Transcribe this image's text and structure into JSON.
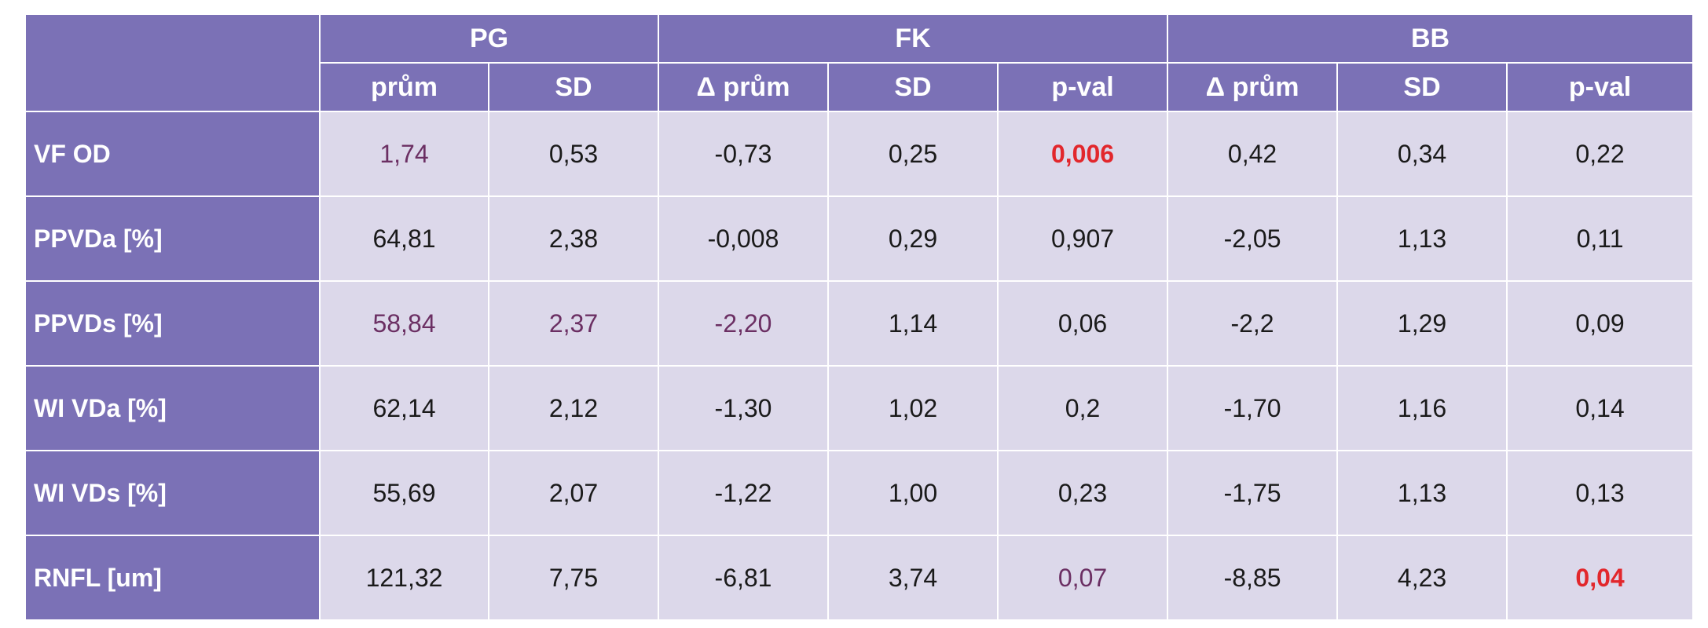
{
  "table": {
    "groups": [
      {
        "label": "PG"
      },
      {
        "label": "FK"
      },
      {
        "label": "BB"
      }
    ],
    "columns": [
      "prům",
      "SD",
      "Δ prům",
      "SD",
      "p-val",
      "Δ prům",
      "SD",
      "p-val"
    ],
    "rows": [
      {
        "label": "VF OD",
        "cells": [
          "1,74",
          "0,53",
          "-0,73",
          "0,25",
          "0,006",
          "0,42",
          "0,34",
          "0,22"
        ]
      },
      {
        "label": "PPVDa [%]",
        "cells": [
          "64,81",
          "2,38",
          "-0,008",
          "0,29",
          "0,907",
          "-2,05",
          "1,13",
          "0,11"
        ]
      },
      {
        "label": "PPVDs [%]",
        "cells": [
          "58,84",
          "2,37",
          "-2,20",
          "1,14",
          "0,06",
          "-2,2",
          "1,29",
          "0,09"
        ]
      },
      {
        "label": "WI VDa [%]",
        "cells": [
          "62,14",
          "2,12",
          "-1,30",
          "1,02",
          "0,2",
          "-1,70",
          "1,16",
          "0,14"
        ]
      },
      {
        "label": "WI VDs [%]",
        "cells": [
          "55,69",
          "2,07",
          "-1,22",
          "1,00",
          "0,23",
          "-1,75",
          "1,13",
          "0,13"
        ]
      },
      {
        "label": "RNFL [um]",
        "cells": [
          "121,32",
          "7,75",
          "-6,81",
          "3,74",
          "0,07",
          "-8,85",
          "4,23",
          "0,04"
        ]
      }
    ]
  },
  "colors": {
    "header_bg": "#7b71b6",
    "cell_bg": "#dcd8ea",
    "significant": "#e2272c",
    "muted_text": "#6b2f63"
  }
}
